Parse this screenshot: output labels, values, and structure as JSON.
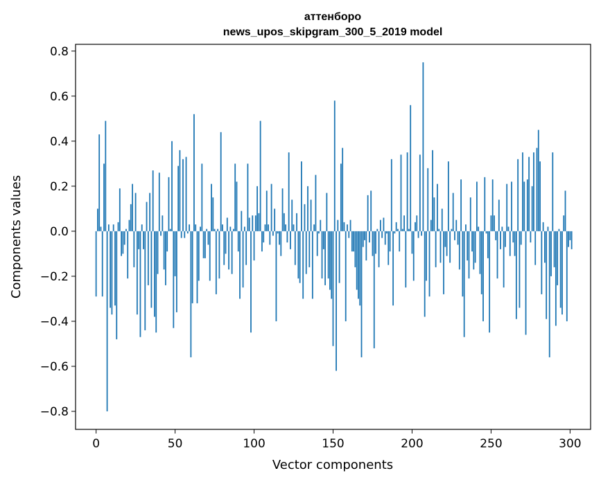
{
  "chart_data": {
    "type": "bar",
    "title": "аттенборо",
    "subtitle": "news_upos_skipgram_300_5_2019 model",
    "xlabel": "Vector components",
    "ylabel": "Components values",
    "xlim": [
      -13,
      313
    ],
    "ylim": [
      -0.88,
      0.83
    ],
    "xticks": [
      0,
      50,
      100,
      150,
      200,
      250,
      300
    ],
    "xtick_labels": [
      "0",
      "50",
      "100",
      "150",
      "200",
      "250",
      "300"
    ],
    "yticks": [
      -0.8,
      -0.6,
      -0.4,
      -0.2,
      0.0,
      0.2,
      0.4,
      0.6,
      0.8
    ],
    "ytick_labels": [
      "−0.8",
      "−0.6",
      "−0.4",
      "−0.2",
      "0.0",
      "0.2",
      "0.4",
      "0.6",
      "0.8"
    ],
    "grid": false,
    "bar_color": "#1f77b4",
    "values": [
      -0.29,
      0.1,
      0.43,
      0.02,
      -0.29,
      0.3,
      0.49,
      -0.8,
      0.03,
      -0.34,
      -0.37,
      0.03,
      -0.33,
      -0.48,
      0.04,
      0.19,
      -0.11,
      -0.1,
      -0.06,
      0.01,
      -0.21,
      0.05,
      0.12,
      0.21,
      -0.16,
      0.17,
      -0.37,
      -0.08,
      -0.47,
      0.03,
      -0.08,
      -0.44,
      0.13,
      -0.24,
      0.17,
      -0.34,
      0.27,
      -0.38,
      -0.45,
      -0.19,
      0.26,
      -0.02,
      0.07,
      -0.17,
      -0.24,
      -0.09,
      0.24,
      0.01,
      0.4,
      -0.43,
      -0.2,
      -0.36,
      0.29,
      0.36,
      -0.03,
      0.32,
      -0.03,
      0.33,
      -0.01,
      0.03,
      -0.56,
      -0.32,
      0.52,
      0.03,
      -0.32,
      -0.22,
      0.02,
      0.3,
      -0.12,
      -0.12,
      0.01,
      -0.06,
      -0.22,
      0.21,
      0.15,
      0.01,
      -0.28,
      0.01,
      -0.21,
      0.44,
      0.03,
      -0.15,
      -0.1,
      0.06,
      -0.17,
      0.02,
      -0.19,
      0.01,
      0.3,
      0.22,
      -0.09,
      -0.3,
      0.09,
      -0.25,
      0.02,
      -0.15,
      0.3,
      0.06,
      -0.45,
      0.07,
      -0.13,
      0.07,
      0.2,
      0.08,
      0.49,
      -0.09,
      -0.05,
      0.03,
      0.18,
      0.03,
      -0.06,
      0.21,
      -0.02,
      0.1,
      -0.4,
      -0.01,
      -0.06,
      -0.11,
      0.19,
      0.08,
      0.03,
      -0.05,
      0.35,
      -0.08,
      0.14,
      0.03,
      -0.15,
      0.08,
      -0.21,
      -0.23,
      0.31,
      -0.3,
      0.12,
      -0.19,
      0.2,
      -0.16,
      0.14,
      -0.3,
      0.03,
      0.25,
      -0.11,
      -0.01,
      0.05,
      -0.21,
      -0.08,
      -0.24,
      0.17,
      -0.21,
      -0.26,
      -0.3,
      -0.51,
      0.58,
      -0.62,
      0.05,
      -0.23,
      0.3,
      0.37,
      0.04,
      -0.4,
      0.03,
      -0.03,
      0.05,
      -0.09,
      -0.09,
      -0.16,
      -0.26,
      -0.3,
      -0.33,
      -0.56,
      -0.07,
      -0.04,
      -0.13,
      0.16,
      -0.05,
      0.18,
      -0.11,
      -0.52,
      -0.1,
      0.01,
      -0.16,
      0.05,
      -0.03,
      0.06,
      -0.06,
      -0.01,
      -0.15,
      -0.09,
      0.32,
      -0.33,
      -0.01,
      0.04,
      0.01,
      -0.09,
      0.34,
      0.01,
      0.07,
      -0.25,
      0.35,
      0.01,
      0.56,
      -0.1,
      -0.22,
      0.04,
      0.07,
      -0.03,
      0.34,
      -0.02,
      0.75,
      -0.38,
      -0.22,
      0.28,
      -0.29,
      0.05,
      0.36,
      0.15,
      -0.16,
      0.21,
      0.01,
      -0.14,
      0.1,
      -0.28,
      -0.07,
      -0.11,
      0.31,
      -0.14,
      0.01,
      0.17,
      -0.04,
      0.05,
      -0.06,
      -0.17,
      0.23,
      -0.29,
      -0.47,
      0.03,
      -0.13,
      -0.21,
      0.15,
      -0.09,
      -0.17,
      -0.14,
      0.22,
      0.02,
      -0.19,
      -0.28,
      -0.4,
      0.24,
      -0.01,
      -0.12,
      -0.45,
      0.07,
      0.23,
      0.07,
      -0.04,
      -0.21,
      0.14,
      -0.08,
      0.02,
      -0.25,
      -0.07,
      0.21,
      0.02,
      -0.11,
      0.22,
      -0.05,
      -0.11,
      -0.39,
      0.32,
      -0.34,
      -0.06,
      0.35,
      0.22,
      -0.46,
      0.23,
      0.33,
      -0.05,
      0.2,
      0.35,
      -0.15,
      0.37,
      0.45,
      0.31,
      -0.28,
      0.04,
      -0.14,
      -0.39,
      0.02,
      -0.56,
      -0.2,
      0.35,
      -0.16,
      -0.42,
      -0.24,
      0.01,
      -0.34,
      -0.37,
      0.07,
      0.18,
      -0.4,
      -0.07,
      -0.04,
      -0.08
    ]
  }
}
